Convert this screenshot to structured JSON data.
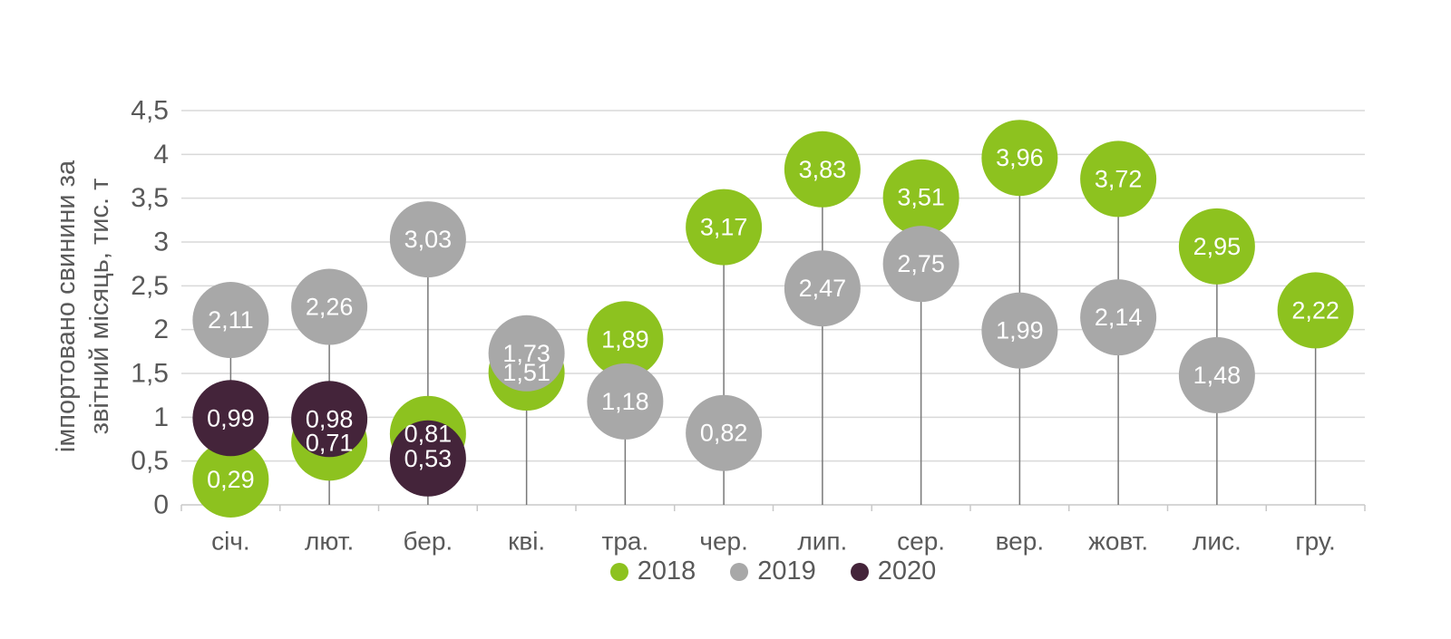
{
  "chart_data": {
    "type": "scatter",
    "title": "",
    "ylabel_lines": [
      "імпортовано свинини за",
      "звітний місяць, тис. т"
    ],
    "categories": [
      "січ.",
      "лют.",
      "бер.",
      "кві.",
      "тра.",
      "чер.",
      "лип.",
      "сер.",
      "вер.",
      "жовт.",
      "лис.",
      "гру."
    ],
    "series": [
      {
        "name": "2018",
        "color": "#8dc21f",
        "values": [
          0.29,
          0.71,
          0.81,
          1.51,
          1.89,
          3.17,
          3.83,
          3.51,
          3.96,
          3.72,
          2.95,
          2.22
        ]
      },
      {
        "name": "2019",
        "color": "#a8a8a8",
        "values": [
          2.11,
          2.26,
          3.03,
          1.73,
          1.18,
          0.82,
          2.47,
          2.75,
          1.99,
          2.14,
          1.48,
          null
        ]
      },
      {
        "name": "2020",
        "color": "#44243a",
        "values": [
          0.99,
          0.98,
          0.53,
          null,
          null,
          null,
          null,
          null,
          null,
          null,
          null,
          null
        ]
      }
    ],
    "yticks": [
      "0",
      "0,5",
      "1",
      "1,5",
      "2",
      "2,5",
      "3",
      "3,5",
      "4",
      "4,5"
    ],
    "ylim": [
      0,
      4.5
    ],
    "grid": true,
    "legend_position": "bottom",
    "decimal_separator": ",",
    "colors": {
      "series_2018": "#8dc21f",
      "series_2019": "#a8a8a8",
      "series_2020": "#44243a",
      "gridline": "#d9d9d9",
      "stem": "#787878",
      "text": "#595959",
      "point_label": "#ffffff",
      "background": "#ffffff"
    }
  }
}
